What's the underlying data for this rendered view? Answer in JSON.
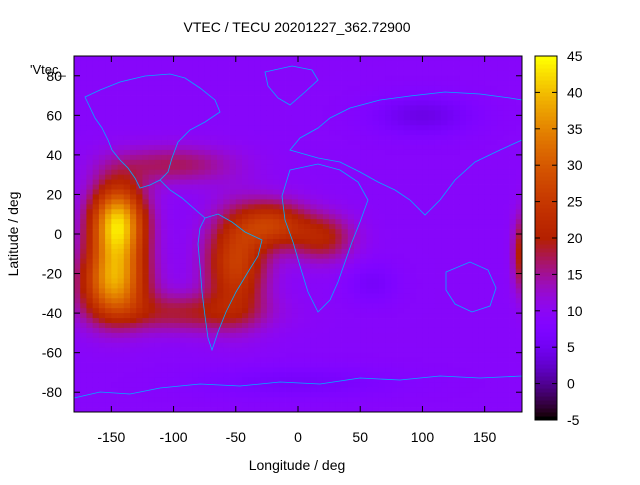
{
  "chart_data": {
    "type": "heatmap",
    "title": "VTEC / TECU 20201227_362.72900",
    "xlabel": "Longitude / deg",
    "ylabel": "Latitude / deg",
    "legend_label": "'Vtec_",
    "xlim": [
      -180,
      180
    ],
    "ylim": [
      -90,
      90
    ],
    "x_ticks": [
      -150,
      -100,
      -50,
      0,
      50,
      100,
      150
    ],
    "y_ticks": [
      -80,
      -60,
      -40,
      -20,
      0,
      20,
      40,
      60,
      80
    ],
    "colorbar": {
      "range": [
        -5,
        45
      ],
      "ticks": [
        -5,
        0,
        5,
        10,
        15,
        20,
        25,
        30,
        35,
        40,
        45
      ],
      "palette": "black-purple-red-orange-yellow"
    },
    "background_value": 9,
    "features": [
      {
        "name": "pacific-crest",
        "lon": -145,
        "lat": 5,
        "peak": 42,
        "spread_lon": 22,
        "spread_lat": 20
      },
      {
        "name": "pacific-south",
        "lon": -148,
        "lat": -25,
        "peak": 35,
        "spread_lon": 26,
        "spread_lat": 18
      },
      {
        "name": "south-america",
        "lon": -50,
        "lat": -15,
        "peak": 26,
        "spread_lon": 25,
        "spread_lat": 25
      },
      {
        "name": "south-atlantic",
        "lon": -20,
        "lat": 5,
        "peak": 24,
        "spread_lon": 28,
        "spread_lat": 12
      },
      {
        "name": "africa-west",
        "lon": 20,
        "lat": -2,
        "peak": 20,
        "spread_lon": 25,
        "spread_lat": 12
      },
      {
        "name": "southern-band",
        "lon": -90,
        "lat": -40,
        "peak": 18,
        "spread_lon": 60,
        "spread_lat": 10
      },
      {
        "name": "north-band",
        "lon": -100,
        "lat": 35,
        "peak": 17,
        "spread_lon": 50,
        "spread_lat": 10
      },
      {
        "name": "east-edge",
        "lon": 178,
        "lat": -10,
        "peak": 20,
        "spread_lon": 6,
        "spread_lat": 20
      },
      {
        "name": "siberia-low",
        "lon": 100,
        "lat": 60,
        "peak": 4,
        "spread_lon": 40,
        "spread_lat": 10
      },
      {
        "name": "indian-low",
        "lon": 60,
        "lat": -25,
        "peak": 6,
        "spread_lon": 20,
        "spread_lat": 10
      },
      {
        "name": "antarctic-low",
        "lon": 0,
        "lat": -75,
        "peak": 6,
        "spread_lon": 80,
        "spread_lat": 8
      }
    ]
  }
}
